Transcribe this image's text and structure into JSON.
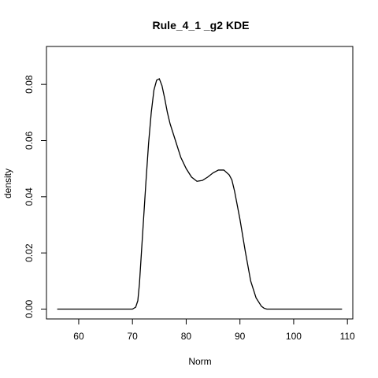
{
  "chart_data": {
    "type": "line",
    "title": "Rule_4_1 _g2  KDE",
    "xlabel": "Norm",
    "ylabel": "density",
    "xlim": [
      54,
      111
    ],
    "ylim": [
      -0.0035,
      0.0935
    ],
    "xticks": [
      60,
      70,
      80,
      90,
      100,
      110
    ],
    "xtick_labels": [
      "60",
      "70",
      "80",
      "90",
      "100",
      "110"
    ],
    "yticks": [
      0.0,
      0.02,
      0.04,
      0.06,
      0.08
    ],
    "ytick_labels": [
      "0.00",
      "0.02",
      "0.04",
      "0.06",
      "0.08"
    ],
    "grid": false,
    "legend": "none",
    "series": [
      {
        "x": [
          56,
          60,
          65,
          70,
          70.6,
          71,
          71.3,
          71.6,
          72,
          72.5,
          73,
          73.5,
          74,
          74.5,
          75,
          75.5,
          76,
          76.5,
          77,
          78,
          79,
          80,
          81,
          82,
          83,
          84,
          85,
          86,
          87,
          88,
          88.5,
          89,
          90,
          91,
          92,
          93,
          94,
          94.5,
          95,
          96,
          100,
          109
        ],
        "y": [
          0.0,
          0.0,
          0.0,
          0.0,
          0.0007,
          0.003,
          0.009,
          0.018,
          0.03,
          0.045,
          0.059,
          0.07,
          0.078,
          0.0815,
          0.082,
          0.0795,
          0.075,
          0.07,
          0.066,
          0.06,
          0.054,
          0.05,
          0.047,
          0.0455,
          0.0458,
          0.047,
          0.0485,
          0.0495,
          0.0495,
          0.0478,
          0.046,
          0.042,
          0.032,
          0.0205,
          0.01,
          0.004,
          0.001,
          0.0003,
          0.0,
          0.0,
          0.0,
          0.0
        ]
      }
    ]
  }
}
